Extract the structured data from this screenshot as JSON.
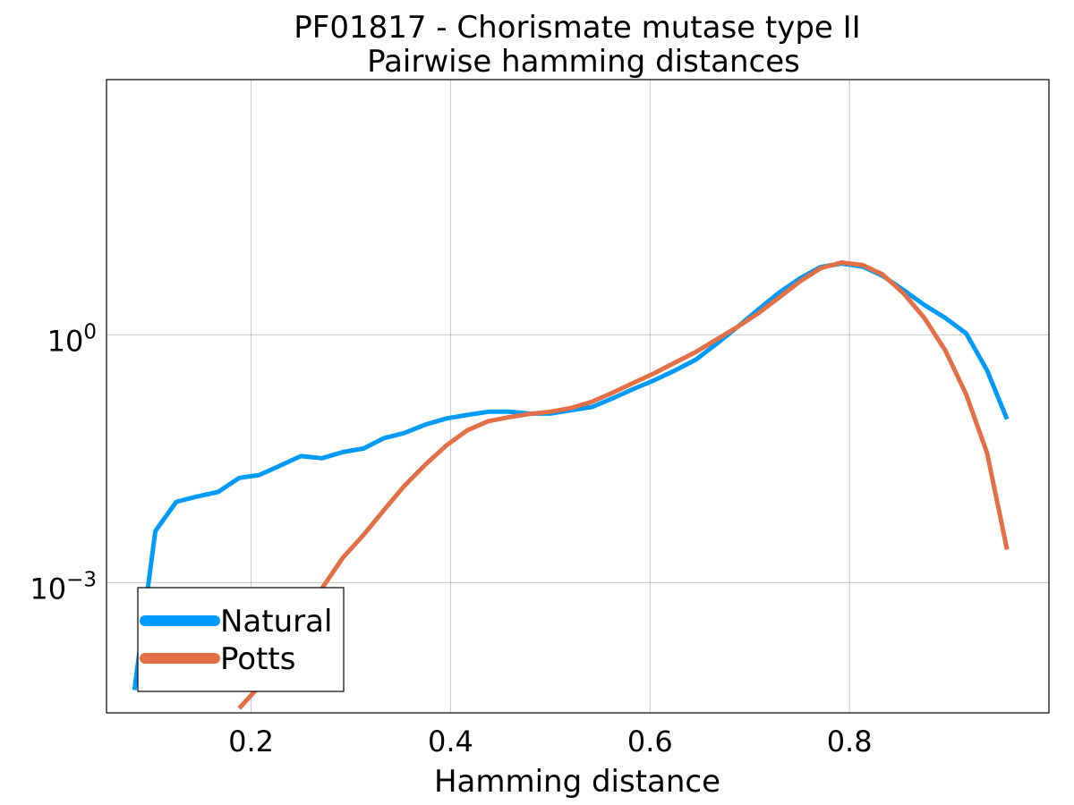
{
  "chart_data": {
    "type": "line",
    "title": "PF01817 - Chorismate mutase type II",
    "subtitle": "Pairwise hamming distances",
    "xlabel": "Hamming distance",
    "ylabel": "",
    "yscale": "log10",
    "xlim": [
      0.055,
      1.0
    ],
    "ylim": [
      2.64e-05,
      1230
    ],
    "grid": true,
    "legend_position": "bottom-left",
    "x_ticks": [
      {
        "value": 0.2,
        "label": "0.2"
      },
      {
        "value": 0.4,
        "label": "0.4"
      },
      {
        "value": 0.6,
        "label": "0.6"
      },
      {
        "value": 0.8,
        "label": "0.8"
      }
    ],
    "y_ticks": [
      {
        "value": 1,
        "base": "10",
        "exp": "0"
      },
      {
        "value": 0.001,
        "base": "10",
        "exp": "−3"
      }
    ],
    "series": [
      {
        "name": "Natural",
        "color": "#009af9",
        "x": [
          0.083,
          0.104,
          0.125,
          0.146,
          0.167,
          0.188,
          0.208,
          0.229,
          0.25,
          0.271,
          0.292,
          0.313,
          0.333,
          0.354,
          0.375,
          0.396,
          0.417,
          0.438,
          0.458,
          0.479,
          0.5,
          0.521,
          0.542,
          0.563,
          0.583,
          0.604,
          0.625,
          0.646,
          0.667,
          0.688,
          0.708,
          0.729,
          0.75,
          0.771,
          0.792,
          0.813,
          0.833,
          0.854,
          0.875,
          0.896,
          0.917,
          0.938,
          0.958
        ],
        "y": [
          5e-05,
          0.0042,
          0.0095,
          0.011,
          0.0125,
          0.0185,
          0.02,
          0.026,
          0.034,
          0.032,
          0.038,
          0.042,
          0.056,
          0.065,
          0.082,
          0.097,
          0.107,
          0.117,
          0.117,
          0.111,
          0.111,
          0.122,
          0.134,
          0.171,
          0.22,
          0.28,
          0.37,
          0.5,
          0.78,
          1.25,
          2.0,
          3.2,
          4.8,
          6.6,
          7.3,
          6.7,
          5.2,
          3.5,
          2.3,
          1.6,
          1.04,
          0.37,
          0.095
        ],
        "points": [
          [
            0.083,
            5e-05
          ],
          [
            0.104,
            0.0042
          ],
          [
            0.125,
            0.0095
          ],
          [
            0.146,
            0.011
          ],
          [
            0.167,
            0.0125
          ],
          [
            0.188,
            0.0185
          ],
          [
            0.208,
            0.02
          ],
          [
            0.229,
            0.026
          ],
          [
            0.25,
            0.034
          ],
          [
            0.271,
            0.032
          ],
          [
            0.292,
            0.038
          ],
          [
            0.313,
            0.042
          ],
          [
            0.333,
            0.056
          ],
          [
            0.354,
            0.065
          ],
          [
            0.375,
            0.082
          ],
          [
            0.396,
            0.097
          ],
          [
            0.417,
            0.107
          ],
          [
            0.438,
            0.117
          ],
          [
            0.458,
            0.117
          ],
          [
            0.479,
            0.111
          ],
          [
            0.5,
            0.111
          ],
          [
            0.521,
            0.122
          ],
          [
            0.542,
            0.134
          ],
          [
            0.563,
            0.171
          ],
          [
            0.583,
            0.22
          ],
          [
            0.604,
            0.28
          ],
          [
            0.625,
            0.37
          ],
          [
            0.646,
            0.5
          ],
          [
            0.667,
            0.78
          ],
          [
            0.688,
            1.25
          ],
          [
            0.708,
            2.0
          ],
          [
            0.729,
            3.2
          ],
          [
            0.75,
            4.8
          ],
          [
            0.771,
            6.6
          ],
          [
            0.792,
            7.3
          ],
          [
            0.813,
            6.7
          ],
          [
            0.833,
            5.2
          ],
          [
            0.854,
            3.5
          ],
          [
            0.875,
            2.3
          ],
          [
            0.896,
            1.6
          ],
          [
            0.917,
            1.04
          ],
          [
            0.938,
            0.37
          ],
          [
            0.958,
            0.095
          ]
        ]
      },
      {
        "name": "Potts",
        "color": "#e26f46",
        "x": [
          0.188,
          0.208,
          0.229,
          0.25,
          0.271,
          0.292,
          0.313,
          0.333,
          0.354,
          0.375,
          0.396,
          0.417,
          0.438,
          0.458,
          0.479,
          0.5,
          0.521,
          0.542,
          0.563,
          0.583,
          0.604,
          0.625,
          0.646,
          0.667,
          0.688,
          0.708,
          0.729,
          0.75,
          0.771,
          0.792,
          0.813,
          0.833,
          0.854,
          0.875,
          0.896,
          0.917,
          0.938,
          0.958
        ],
        "y": [
          3e-05,
          5.5e-05,
          0.000115,
          0.00027,
          0.00085,
          0.002,
          0.0038,
          0.0075,
          0.015,
          0.027,
          0.046,
          0.07,
          0.09,
          0.1,
          0.11,
          0.117,
          0.13,
          0.155,
          0.2,
          0.26,
          0.34,
          0.46,
          0.62,
          0.88,
          1.25,
          1.8,
          2.8,
          4.4,
          6.4,
          7.5,
          7.0,
          5.4,
          3.2,
          1.6,
          0.65,
          0.19,
          0.037,
          0.0025
        ],
        "points": [
          [
            0.188,
            3e-05
          ],
          [
            0.208,
            5.5e-05
          ],
          [
            0.229,
            0.000115
          ],
          [
            0.25,
            0.00027
          ],
          [
            0.271,
            0.00085
          ],
          [
            0.292,
            0.002
          ],
          [
            0.313,
            0.0038
          ],
          [
            0.333,
            0.0075
          ],
          [
            0.354,
            0.015
          ],
          [
            0.375,
            0.027
          ],
          [
            0.396,
            0.046
          ],
          [
            0.417,
            0.07
          ],
          [
            0.438,
            0.09
          ],
          [
            0.458,
            0.1
          ],
          [
            0.479,
            0.11
          ],
          [
            0.5,
            0.117
          ],
          [
            0.521,
            0.13
          ],
          [
            0.542,
            0.155
          ],
          [
            0.563,
            0.2
          ],
          [
            0.583,
            0.26
          ],
          [
            0.604,
            0.34
          ],
          [
            0.625,
            0.46
          ],
          [
            0.646,
            0.62
          ],
          [
            0.667,
            0.88
          ],
          [
            0.688,
            1.25
          ],
          [
            0.708,
            1.8
          ],
          [
            0.729,
            2.8
          ],
          [
            0.75,
            4.4
          ],
          [
            0.771,
            6.4
          ],
          [
            0.792,
            7.5
          ],
          [
            0.813,
            7.0
          ],
          [
            0.833,
            5.4
          ],
          [
            0.854,
            3.2
          ],
          [
            0.875,
            1.6
          ],
          [
            0.896,
            0.65
          ],
          [
            0.917,
            0.19
          ],
          [
            0.938,
            0.037
          ],
          [
            0.958,
            0.0025
          ]
        ]
      }
    ]
  }
}
